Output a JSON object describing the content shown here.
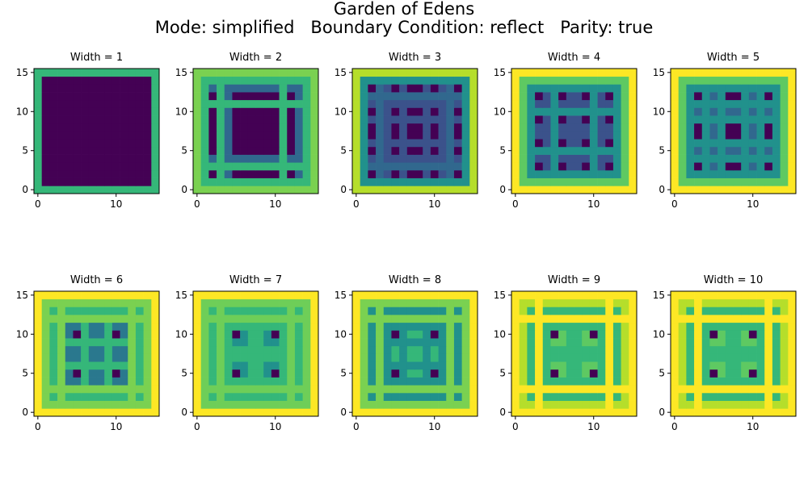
{
  "figure": {
    "title_line1": "Garden of Edens",
    "title_line2": "Mode: simplified   Boundary Condition: reflect   Parity: true"
  },
  "colormap": "viridis",
  "chart_data": [
    {
      "type": "heatmap",
      "title": "Width = 1",
      "width": 1,
      "size": 16,
      "xlim": [
        0,
        15
      ],
      "ylim": [
        0,
        15
      ],
      "xticks": [
        0,
        10
      ],
      "yticks": [
        0,
        5,
        10,
        15
      ],
      "pattern": [
        1,
        0,
        0,
        0,
        0,
        0,
        0,
        0,
        0,
        0,
        0,
        0,
        0,
        0,
        0,
        1
      ],
      "palette": [
        "#440154",
        "#35b779",
        "#fde725"
      ]
    },
    {
      "type": "heatmap",
      "title": "Width = 2",
      "width": 2,
      "size": 16,
      "xlim": [
        0,
        15
      ],
      "ylim": [
        0,
        15
      ],
      "xticks": [
        0,
        10
      ],
      "yticks": [
        0,
        5,
        10,
        15
      ],
      "pattern": [
        3,
        2,
        0,
        2,
        1,
        0,
        0,
        0,
        0,
        0,
        0,
        2,
        0,
        1,
        2,
        3
      ],
      "palette": [
        "#440154",
        "#30688e",
        "#35b779",
        "#7ad151"
      ]
    },
    {
      "type": "heatmap",
      "title": "Width = 3",
      "width": 3,
      "size": 16,
      "xlim": [
        0,
        15
      ],
      "ylim": [
        0,
        15
      ],
      "xticks": [
        0,
        10
      ],
      "yticks": [
        0,
        5,
        10,
        15
      ],
      "pattern": [
        4,
        3,
        0,
        2,
        1,
        0,
        1,
        0,
        0,
        1,
        0,
        1,
        2,
        0,
        3,
        4
      ],
      "palette": [
        "#440154",
        "#3b528b",
        "#31688e",
        "#21918c",
        "#b5de2b"
      ]
    },
    {
      "type": "heatmap",
      "title": "Width = 4",
      "width": 4,
      "size": 16,
      "xlim": [
        0,
        15
      ],
      "ylim": [
        0,
        15
      ],
      "xticks": [
        0,
        10
      ],
      "yticks": [
        0,
        5,
        10,
        15
      ],
      "pattern": [
        4,
        3,
        2,
        0,
        1,
        2,
        0,
        1,
        1,
        0,
        2,
        1,
        0,
        2,
        3,
        4
      ],
      "palette": [
        "#440154",
        "#3b528b",
        "#21918c",
        "#5ec962",
        "#fde725"
      ]
    },
    {
      "type": "heatmap",
      "title": "Width = 5",
      "width": 5,
      "size": 16,
      "xlim": [
        0,
        15
      ],
      "ylim": [
        0,
        15
      ],
      "xticks": [
        0,
        10
      ],
      "yticks": [
        0,
        5,
        10,
        15
      ],
      "pattern": [
        4,
        3,
        2,
        0,
        2,
        1,
        2,
        0,
        0,
        2,
        1,
        2,
        0,
        2,
        3,
        4
      ],
      "palette": [
        "#440154",
        "#31688e",
        "#21918c",
        "#5ec962",
        "#fde725"
      ]
    },
    {
      "type": "heatmap",
      "title": "Width = 6",
      "width": 6,
      "size": 16,
      "xlim": [
        0,
        15
      ],
      "ylim": [
        0,
        15
      ],
      "xticks": [
        0,
        10
      ],
      "yticks": [
        0,
        5,
        10,
        15
      ],
      "pattern": [
        4,
        3,
        2,
        3,
        1,
        0,
        2,
        1,
        1,
        2,
        0,
        1,
        3,
        2,
        3,
        4
      ],
      "palette": [
        "#440154",
        "#2a788e",
        "#35b779",
        "#7ad151",
        "#fde725"
      ]
    },
    {
      "type": "heatmap",
      "title": "Width = 7",
      "width": 7,
      "size": 16,
      "xlim": [
        0,
        15
      ],
      "ylim": [
        0,
        15
      ],
      "xticks": [
        0,
        10
      ],
      "yticks": [
        0,
        5,
        10,
        15
      ],
      "pattern": [
        4,
        3,
        2,
        3,
        2,
        0,
        1,
        2,
        2,
        1,
        0,
        2,
        3,
        2,
        3,
        4
      ],
      "palette": [
        "#440154",
        "#21918c",
        "#35b779",
        "#6ece58",
        "#fde725"
      ]
    },
    {
      "type": "heatmap",
      "title": "Width = 8",
      "width": 8,
      "size": 16,
      "xlim": [
        0,
        15
      ],
      "ylim": [
        0,
        15
      ],
      "xticks": [
        0,
        10
      ],
      "yticks": [
        0,
        5,
        10,
        15
      ],
      "pattern": [
        4,
        3,
        2,
        3,
        2,
        0,
        2,
        1,
        1,
        2,
        0,
        2,
        3,
        2,
        3,
        4
      ],
      "palette": [
        "#440154",
        "#35b779",
        "#21918c",
        "#7ad151",
        "#fde725"
      ]
    },
    {
      "type": "heatmap",
      "title": "Width = 9",
      "width": 9,
      "size": 16,
      "xlim": [
        0,
        15
      ],
      "ylim": [
        0,
        15
      ],
      "xticks": [
        0,
        10
      ],
      "yticks": [
        0,
        5,
        10,
        15
      ],
      "pattern": [
        4,
        3,
        2,
        4,
        2,
        0,
        1,
        2,
        2,
        1,
        0,
        2,
        4,
        2,
        3,
        4
      ],
      "palette": [
        "#440154",
        "#5ec962",
        "#35b779",
        "#b5de2b",
        "#fde725"
      ]
    },
    {
      "type": "heatmap",
      "title": "Width = 10",
      "width": 10,
      "size": 16,
      "xlim": [
        0,
        15
      ],
      "ylim": [
        0,
        15
      ],
      "xticks": [
        0,
        10
      ],
      "yticks": [
        0,
        5,
        10,
        15
      ],
      "pattern": [
        4,
        3,
        2,
        4,
        2,
        0,
        1,
        2,
        2,
        1,
        0,
        2,
        4,
        2,
        3,
        4
      ],
      "palette": [
        "#440154",
        "#5ec962",
        "#35b779",
        "#b5de2b",
        "#fde725"
      ]
    }
  ]
}
